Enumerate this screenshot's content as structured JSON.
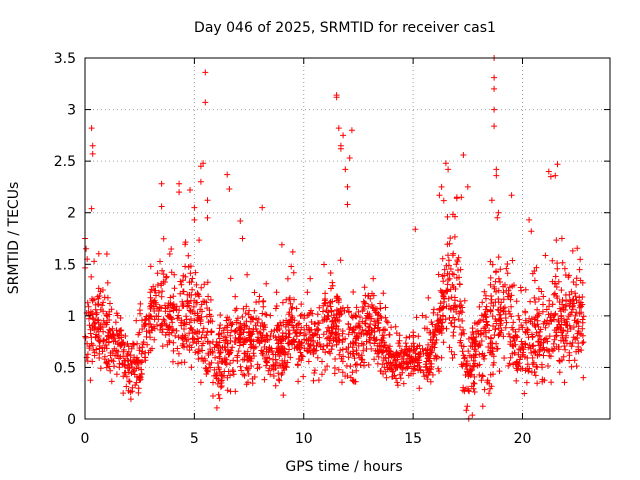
{
  "chart_data": {
    "type": "scatter",
    "title": "Day 046 of 2025, SRMTID for receiver cas1",
    "xlabel": "GPS time / hours",
    "ylabel": "SRMTID / TECUs",
    "xlim": [
      0,
      24
    ],
    "ylim": [
      0,
      3.5
    ],
    "xticks": [
      "0",
      "5",
      "10",
      "15",
      "20"
    ],
    "yticks": [
      "0",
      "0.5",
      "1",
      "1.5",
      "2",
      "2.5",
      "3",
      "3.5"
    ],
    "grid": true,
    "marker": "+",
    "color": "#ff0000",
    "profile": [
      [
        0.0,
        0.85,
        0.35
      ],
      [
        0.5,
        0.95,
        0.35
      ],
      [
        1.0,
        0.8,
        0.35
      ],
      [
        1.5,
        0.7,
        0.3
      ],
      [
        2.0,
        0.5,
        0.25
      ],
      [
        2.5,
        0.6,
        0.3
      ],
      [
        3.0,
        0.95,
        0.35
      ],
      [
        3.5,
        1.05,
        0.35
      ],
      [
        4.0,
        1.0,
        0.4
      ],
      [
        4.5,
        0.95,
        0.4
      ],
      [
        5.0,
        1.0,
        0.45
      ],
      [
        5.5,
        0.85,
        0.45
      ],
      [
        6.0,
        0.6,
        0.35
      ],
      [
        6.5,
        0.65,
        0.35
      ],
      [
        7.0,
        0.75,
        0.35
      ],
      [
        7.5,
        0.7,
        0.35
      ],
      [
        8.0,
        0.8,
        0.35
      ],
      [
        8.5,
        0.6,
        0.3
      ],
      [
        9.0,
        0.7,
        0.3
      ],
      [
        9.5,
        0.9,
        0.35
      ],
      [
        10.0,
        0.75,
        0.35
      ],
      [
        10.5,
        0.75,
        0.35
      ],
      [
        11.0,
        0.85,
        0.35
      ],
      [
        11.5,
        0.9,
        0.4
      ],
      [
        12.0,
        0.75,
        0.4
      ],
      [
        12.5,
        0.75,
        0.35
      ],
      [
        13.0,
        0.95,
        0.3
      ],
      [
        13.5,
        0.8,
        0.3
      ],
      [
        14.0,
        0.55,
        0.2
      ],
      [
        14.5,
        0.55,
        0.2
      ],
      [
        15.0,
        0.6,
        0.2
      ],
      [
        15.5,
        0.55,
        0.25
      ],
      [
        16.0,
        0.7,
        0.35
      ],
      [
        16.5,
        1.3,
        0.55
      ],
      [
        17.0,
        1.15,
        0.55
      ],
      [
        17.5,
        0.4,
        0.35
      ],
      [
        18.0,
        0.7,
        0.4
      ],
      [
        18.5,
        0.8,
        0.5
      ],
      [
        19.0,
        1.1,
        0.5
      ],
      [
        19.5,
        0.9,
        0.45
      ],
      [
        20.0,
        0.7,
        0.4
      ],
      [
        20.5,
        0.8,
        0.4
      ],
      [
        21.0,
        0.8,
        0.4
      ],
      [
        21.5,
        1.0,
        0.4
      ],
      [
        22.0,
        0.9,
        0.4
      ],
      [
        22.5,
        1.0,
        0.4
      ],
      [
        22.8,
        1.0,
        0.4
      ]
    ],
    "highlights": [
      [
        0.0,
        1.75
      ],
      [
        0.05,
        1.65
      ],
      [
        0.1,
        1.55
      ],
      [
        0.3,
        2.82
      ],
      [
        0.35,
        2.65
      ],
      [
        0.35,
        2.57
      ],
      [
        0.3,
        2.04
      ],
      [
        1.0,
        1.6
      ],
      [
        3.5,
        2.28
      ],
      [
        3.5,
        2.06
      ],
      [
        4.3,
        2.28
      ],
      [
        4.3,
        2.2
      ],
      [
        4.8,
        2.22
      ],
      [
        5.0,
        2.05
      ],
      [
        5.0,
        1.93
      ],
      [
        5.3,
        2.45
      ],
      [
        5.3,
        2.3
      ],
      [
        5.4,
        2.48
      ],
      [
        5.5,
        3.36
      ],
      [
        5.5,
        3.07
      ],
      [
        5.6,
        2.12
      ],
      [
        5.6,
        1.95
      ],
      [
        6.5,
        2.37
      ],
      [
        6.6,
        2.23
      ],
      [
        7.1,
        1.92
      ],
      [
        7.2,
        1.75
      ],
      [
        8.1,
        2.05
      ],
      [
        9.0,
        1.69
      ],
      [
        9.5,
        1.62
      ],
      [
        11.5,
        3.14
      ],
      [
        11.5,
        3.12
      ],
      [
        11.6,
        2.82
      ],
      [
        11.7,
        2.65
      ],
      [
        11.7,
        2.62
      ],
      [
        11.8,
        2.75
      ],
      [
        12.2,
        2.8
      ],
      [
        12.1,
        2.53
      ],
      [
        11.9,
        2.42
      ],
      [
        12.0,
        2.25
      ],
      [
        12.0,
        2.08
      ],
      [
        15.1,
        1.84
      ],
      [
        16.5,
        2.48
      ],
      [
        16.6,
        2.42
      ],
      [
        16.3,
        2.25
      ],
      [
        16.2,
        2.17
      ],
      [
        17.0,
        2.15
      ],
      [
        17.2,
        2.15
      ],
      [
        17.3,
        2.56
      ],
      [
        17.5,
        2.25
      ],
      [
        18.7,
        3.5
      ],
      [
        18.7,
        3.31
      ],
      [
        18.7,
        3.2
      ],
      [
        18.7,
        3.0
      ],
      [
        18.7,
        2.84
      ],
      [
        18.8,
        2.42
      ],
      [
        18.8,
        2.36
      ],
      [
        18.6,
        2.12
      ],
      [
        18.9,
        2.0
      ],
      [
        19.5,
        2.17
      ],
      [
        20.3,
        1.93
      ],
      [
        20.4,
        1.82
      ],
      [
        21.2,
        2.4
      ],
      [
        21.3,
        2.35
      ],
      [
        21.6,
        2.47
      ],
      [
        21.5,
        2.36
      ],
      [
        21.8,
        1.75
      ],
      [
        22.3,
        1.63
      ]
    ],
    "n_points": 2400,
    "seed": 46
  }
}
